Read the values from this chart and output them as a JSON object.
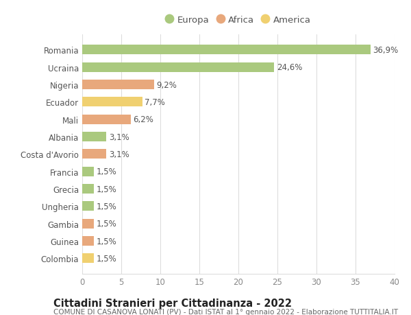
{
  "countries": [
    "Romania",
    "Ucraina",
    "Nigeria",
    "Ecuador",
    "Mali",
    "Albania",
    "Costa d'Avorio",
    "Francia",
    "Grecia",
    "Ungheria",
    "Gambia",
    "Guinea",
    "Colombia"
  ],
  "values": [
    36.9,
    24.6,
    9.2,
    7.7,
    6.2,
    3.1,
    3.1,
    1.5,
    1.5,
    1.5,
    1.5,
    1.5,
    1.5
  ],
  "continents": [
    "Europa",
    "Europa",
    "Africa",
    "America",
    "Africa",
    "Europa",
    "Africa",
    "Europa",
    "Europa",
    "Europa",
    "Africa",
    "Africa",
    "America"
  ],
  "colors": {
    "Europa": "#aac97e",
    "Africa": "#e8a87c",
    "America": "#f0d070"
  },
  "legend_order": [
    "Europa",
    "Africa",
    "America"
  ],
  "xlim": [
    0,
    40
  ],
  "xticks": [
    0,
    5,
    10,
    15,
    20,
    25,
    30,
    35,
    40
  ],
  "title": "Cittadini Stranieri per Cittadinanza - 2022",
  "subtitle": "COMUNE DI CASANOVA LONATI (PV) - Dati ISTAT al 1° gennaio 2022 - Elaborazione TUTTITALIA.IT",
  "background_color": "#ffffff",
  "grid_color": "#dddddd",
  "bar_height": 0.55,
  "label_fontsize": 8.5,
  "tick_fontsize": 8.5,
  "title_fontsize": 10.5,
  "subtitle_fontsize": 7.5
}
